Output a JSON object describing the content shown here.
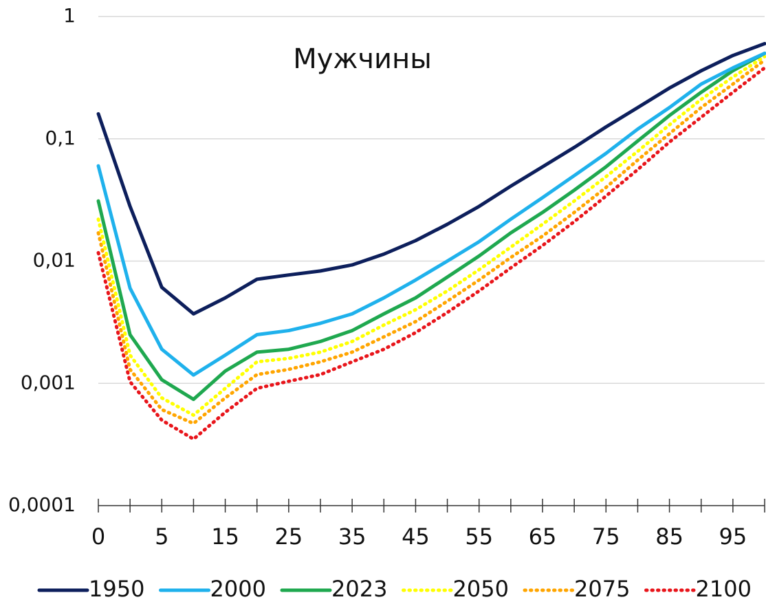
{
  "chart_data": {
    "type": "line",
    "title": "Мужчины",
    "categories": [
      "0",
      null,
      "5",
      null,
      "15",
      null,
      "25",
      null,
      "35",
      null,
      "45",
      null,
      "55",
      null,
      "65",
      null,
      "75",
      null,
      "85",
      null,
      "95",
      null
    ],
    "ylim": [
      0.0001,
      1
    ],
    "log_y": true,
    "grid": true,
    "yticks": [
      {
        "value": 0.0001,
        "label": "0,0001"
      },
      {
        "value": 0.001,
        "label": "0,001"
      },
      {
        "value": 0.01,
        "label": "0,01"
      },
      {
        "value": 0.1,
        "label": "0,1"
      },
      1
    ],
    "legend": "bottom",
    "series": [
      {
        "name": "1950",
        "color": "#0d1f5c",
        "style": "solid",
        "values": [
          0.16,
          0.028,
          0.0061,
          0.0037,
          0.005,
          0.0071,
          0.0077,
          0.0083,
          0.0093,
          0.0114,
          0.0147,
          0.02,
          0.028,
          0.041,
          0.059,
          0.085,
          0.125,
          0.18,
          0.26,
          0.36,
          0.48,
          0.6
        ]
      },
      {
        "name": "2000",
        "color": "#1fb1ec",
        "style": "solid",
        "values": [
          0.06,
          0.006,
          0.0019,
          0.00117,
          0.0017,
          0.0025,
          0.0027,
          0.0031,
          0.0037,
          0.005,
          0.007,
          0.01,
          0.0144,
          0.022,
          0.033,
          0.05,
          0.076,
          0.12,
          0.18,
          0.28,
          0.38,
          0.5
        ]
      },
      {
        "name": "2023",
        "color": "#1fa84f",
        "style": "solid",
        "values": [
          0.031,
          0.0025,
          0.00107,
          0.00074,
          0.00126,
          0.0018,
          0.0019,
          0.0022,
          0.0027,
          0.0037,
          0.005,
          0.0074,
          0.011,
          0.017,
          0.025,
          0.038,
          0.059,
          0.096,
          0.155,
          0.24,
          0.36,
          0.5
        ]
      },
      {
        "name": "2050",
        "color": "#ffff00",
        "style": "dotted",
        "values": [
          0.022,
          0.0017,
          0.00076,
          0.00055,
          0.00091,
          0.0015,
          0.0016,
          0.0018,
          0.0022,
          0.003,
          0.004,
          0.0057,
          0.0085,
          0.013,
          0.02,
          0.031,
          0.049,
          0.079,
          0.13,
          0.21,
          0.32,
          0.47
        ]
      },
      {
        "name": "2075",
        "color": "#ffa500",
        "style": "dotted",
        "values": [
          0.017,
          0.0013,
          0.00061,
          0.00047,
          0.00076,
          0.00118,
          0.0013,
          0.0015,
          0.0018,
          0.0024,
          0.0032,
          0.0047,
          0.007,
          0.0107,
          0.016,
          0.025,
          0.04,
          0.067,
          0.11,
          0.18,
          0.28,
          0.44
        ]
      },
      {
        "name": "2100",
        "color": "#e8151b",
        "style": "dotted",
        "values": [
          0.0117,
          0.00103,
          0.0005,
          0.00035,
          0.00058,
          0.00091,
          0.00104,
          0.00118,
          0.0015,
          0.0019,
          0.0026,
          0.0038,
          0.0057,
          0.0088,
          0.0134,
          0.021,
          0.034,
          0.056,
          0.094,
          0.15,
          0.24,
          0.38
        ]
      }
    ]
  }
}
